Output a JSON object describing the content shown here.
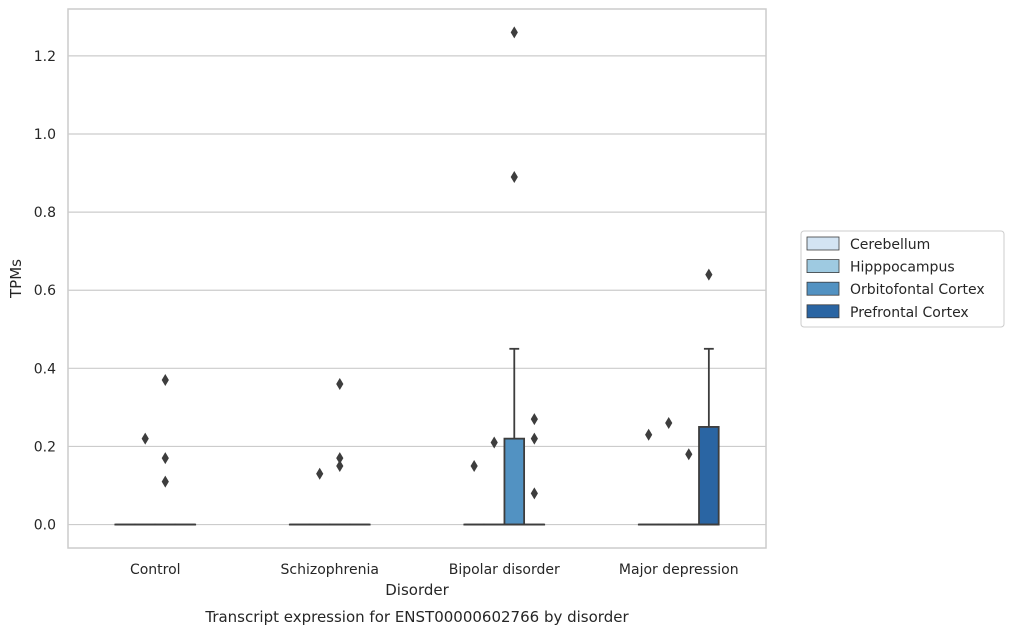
{
  "chart_data": {
    "type": "boxplot",
    "title": "",
    "caption": "Transcript expression for ENST00000602766 by disorder",
    "xlabel": "Disorder",
    "ylabel": "TPMs",
    "ylim": [
      -0.06,
      1.32
    ],
    "yticks": [
      0.0,
      0.2,
      0.4,
      0.6,
      0.8,
      1.0,
      1.2
    ],
    "ytick_labels": [
      "0.0",
      "0.2",
      "0.4",
      "0.6",
      "0.8",
      "1.0",
      "1.2"
    ],
    "grid": true,
    "legend_position": "right",
    "categories": [
      "Control",
      "Schizophrenia",
      "Bipolar disorder",
      "Major depression"
    ],
    "series": [
      {
        "name": "Cerebellum",
        "color": "#d3e4f3",
        "boxes": [
          {
            "q1": 0,
            "median": 0,
            "q3": 0,
            "whisker_low": 0,
            "whisker_high": 0,
            "outliers": []
          },
          {
            "q1": 0,
            "median": 0,
            "q3": 0,
            "whisker_low": 0,
            "whisker_high": 0,
            "outliers": []
          },
          {
            "q1": 0,
            "median": 0,
            "q3": 0,
            "whisker_low": 0,
            "whisker_high": 0,
            "outliers": [
              0.15
            ]
          },
          {
            "q1": 0,
            "median": 0,
            "q3": 0,
            "whisker_low": 0,
            "whisker_high": 0,
            "outliers": [
              0.23
            ]
          }
        ]
      },
      {
        "name": "Hipppocampus",
        "color": "#9ecae1",
        "boxes": [
          {
            "q1": 0,
            "median": 0,
            "q3": 0,
            "whisker_low": 0,
            "whisker_high": 0,
            "outliers": [
              0.22
            ]
          },
          {
            "q1": 0,
            "median": 0,
            "q3": 0,
            "whisker_low": 0,
            "whisker_high": 0,
            "outliers": [
              0.13
            ]
          },
          {
            "q1": 0,
            "median": 0,
            "q3": 0,
            "whisker_low": 0,
            "whisker_high": 0,
            "outliers": [
              0.21
            ]
          },
          {
            "q1": 0,
            "median": 0,
            "q3": 0,
            "whisker_low": 0,
            "whisker_high": 0,
            "outliers": [
              0.26
            ]
          }
        ]
      },
      {
        "name": "Orbitofontal Cortex",
        "color": "#5292c2",
        "boxes": [
          {
            "q1": 0,
            "median": 0,
            "q3": 0,
            "whisker_low": 0,
            "whisker_high": 0,
            "outliers": [
              0.37,
              0.17,
              0.11
            ]
          },
          {
            "q1": 0,
            "median": 0,
            "q3": 0,
            "whisker_low": 0,
            "whisker_high": 0,
            "outliers": [
              0.36,
              0.17,
              0.15
            ]
          },
          {
            "q1": 0,
            "median": 0,
            "q3": 0.22,
            "whisker_low": 0,
            "whisker_high": 0.45,
            "outliers": [
              1.26,
              0.89
            ]
          },
          {
            "q1": 0,
            "median": 0,
            "q3": 0,
            "whisker_low": 0,
            "whisker_high": 0,
            "outliers": [
              0.18
            ]
          }
        ]
      },
      {
        "name": "Prefrontal Cortex",
        "color": "#2a65a3",
        "boxes": [
          {
            "q1": 0,
            "median": 0,
            "q3": 0,
            "whisker_low": 0,
            "whisker_high": 0,
            "outliers": []
          },
          {
            "q1": 0,
            "median": 0,
            "q3": 0,
            "whisker_low": 0,
            "whisker_high": 0,
            "outliers": []
          },
          {
            "q1": 0,
            "median": 0,
            "q3": 0,
            "whisker_low": 0,
            "whisker_high": 0,
            "outliers": [
              0.27,
              0.22,
              0.08
            ]
          },
          {
            "q1": 0,
            "median": 0,
            "q3": 0.25,
            "whisker_low": 0,
            "whisker_high": 0.45,
            "outliers": [
              0.64
            ]
          }
        ]
      }
    ]
  }
}
